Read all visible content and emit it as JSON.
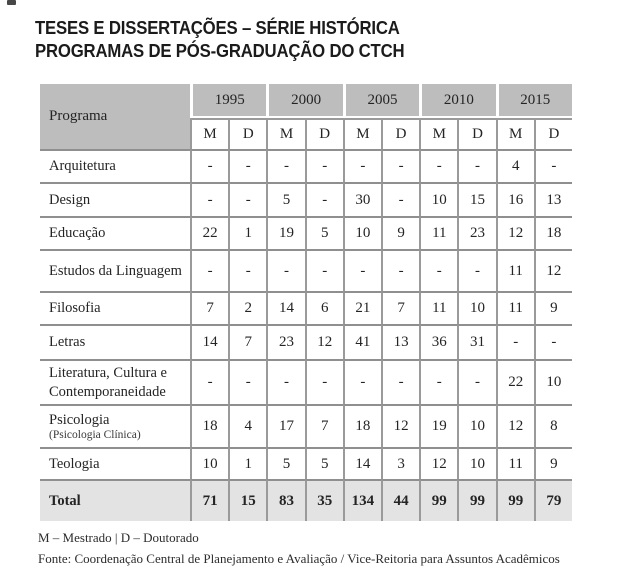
{
  "title": {
    "line1": "TESES E DISSERTAÇÕES – SÉRIE HISTÓRICA",
    "line2": "PROGRAMAS DE PÓS-GRADUAÇÃO DO CTCH"
  },
  "chart_data": {
    "type": "table",
    "title": "TESES E DISSERTAÇÕES – SÉRIE HISTÓRICA PROGRAMAS DE PÓS-GRADUAÇÃO DO CTCH",
    "row_header_label": "Programa",
    "years": [
      "1995",
      "2000",
      "2005",
      "2010",
      "2015"
    ],
    "degree_labels": [
      "M",
      "D"
    ],
    "rows": [
      {
        "program": "Arquitetura",
        "values": [
          "-",
          "-",
          "-",
          "-",
          "-",
          "-",
          "-",
          "-",
          "4",
          "-"
        ]
      },
      {
        "program": "Design",
        "values": [
          "-",
          "-",
          "5",
          "-",
          "30",
          "-",
          "10",
          "15",
          "16",
          "13"
        ]
      },
      {
        "program": "Educação",
        "values": [
          "22",
          "1",
          "19",
          "5",
          "10",
          "9",
          "11",
          "23",
          "12",
          "18"
        ]
      },
      {
        "program": "Estudos da Linguagem",
        "values": [
          "-",
          "-",
          "-",
          "-",
          "-",
          "-",
          "-",
          "-",
          "11",
          "12"
        ]
      },
      {
        "program": "Filosofia",
        "values": [
          "7",
          "2",
          "14",
          "6",
          "21",
          "7",
          "11",
          "10",
          "11",
          "9"
        ]
      },
      {
        "program": "Letras",
        "values": [
          "14",
          "7",
          "23",
          "12",
          "41",
          "13",
          "36",
          "31",
          "-",
          "-"
        ]
      },
      {
        "program": "Literatura, Cultura e Contemporaneidade",
        "values": [
          "-",
          "-",
          "-",
          "-",
          "-",
          "-",
          "-",
          "-",
          "22",
          "10"
        ]
      },
      {
        "program": "Psicologia",
        "subtitle": "(Psicologia Clínica)",
        "values": [
          "18",
          "4",
          "17",
          "7",
          "18",
          "12",
          "19",
          "10",
          "12",
          "8"
        ]
      },
      {
        "program": "Teologia",
        "values": [
          "10",
          "1",
          "5",
          "5",
          "14",
          "3",
          "12",
          "10",
          "11",
          "9"
        ]
      }
    ],
    "total_row": {
      "label": "Total",
      "values": [
        "71",
        "15",
        "83",
        "35",
        "134",
        "44",
        "99",
        "99",
        "99",
        "79"
      ]
    },
    "legend": "M – Mestrado | D – Doutorado",
    "source": "Fonte: Coordenação Central de Planejamento e Avaliação / Vice-Reitoria para Assuntos Acadêmicos"
  },
  "colors": {
    "header_gray": "#bdbdbd",
    "total_gray": "#e3e3e3",
    "vertical_line": "#9a9a9a",
    "horizontal_line": "#8f8f8f",
    "text": "#222222"
  }
}
